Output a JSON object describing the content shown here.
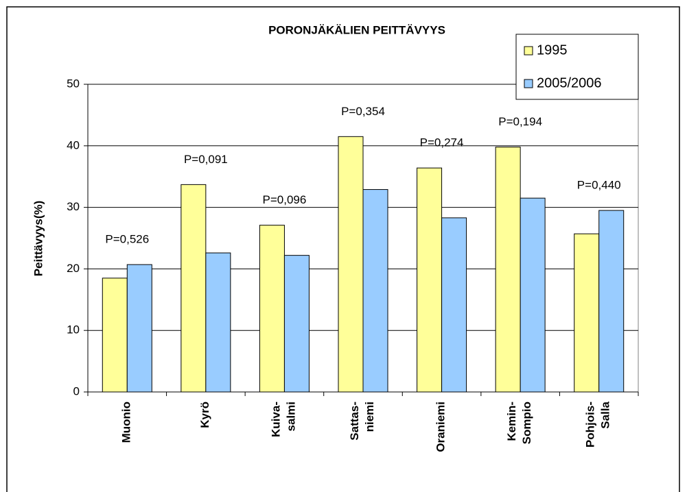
{
  "chart_data": {
    "type": "bar",
    "title": "PORONJÄKÄLIEN PEITTÄVYYS",
    "y_label": "Peittävyys(%)",
    "categories": [
      "Muonio",
      "Kyrö",
      "Kuiva-\nsalmi",
      "Sattas-\nniemi",
      "Oraniemi",
      "Kemin-\nSompio",
      "Pohjois-\nSalla"
    ],
    "series": [
      {
        "name": "1995",
        "color": "#ffff99",
        "values": [
          18.5,
          33.7,
          27.1,
          41.5,
          36.4,
          39.8,
          25.7
        ]
      },
      {
        "name": "2005/2006",
        "color": "#99ccff",
        "values": [
          20.7,
          22.6,
          22.2,
          32.9,
          28.3,
          31.5,
          29.5
        ]
      }
    ],
    "annotations": [
      "P=0,526",
      "P=0,091",
      "P=0,096",
      "P=0,354",
      "P=0,274",
      "P=0,194",
      "P=0,440"
    ],
    "ylim": [
      0,
      50
    ],
    "yticks": [
      0,
      10,
      20,
      30,
      40,
      50
    ],
    "grid": true,
    "legend": "top-right"
  }
}
